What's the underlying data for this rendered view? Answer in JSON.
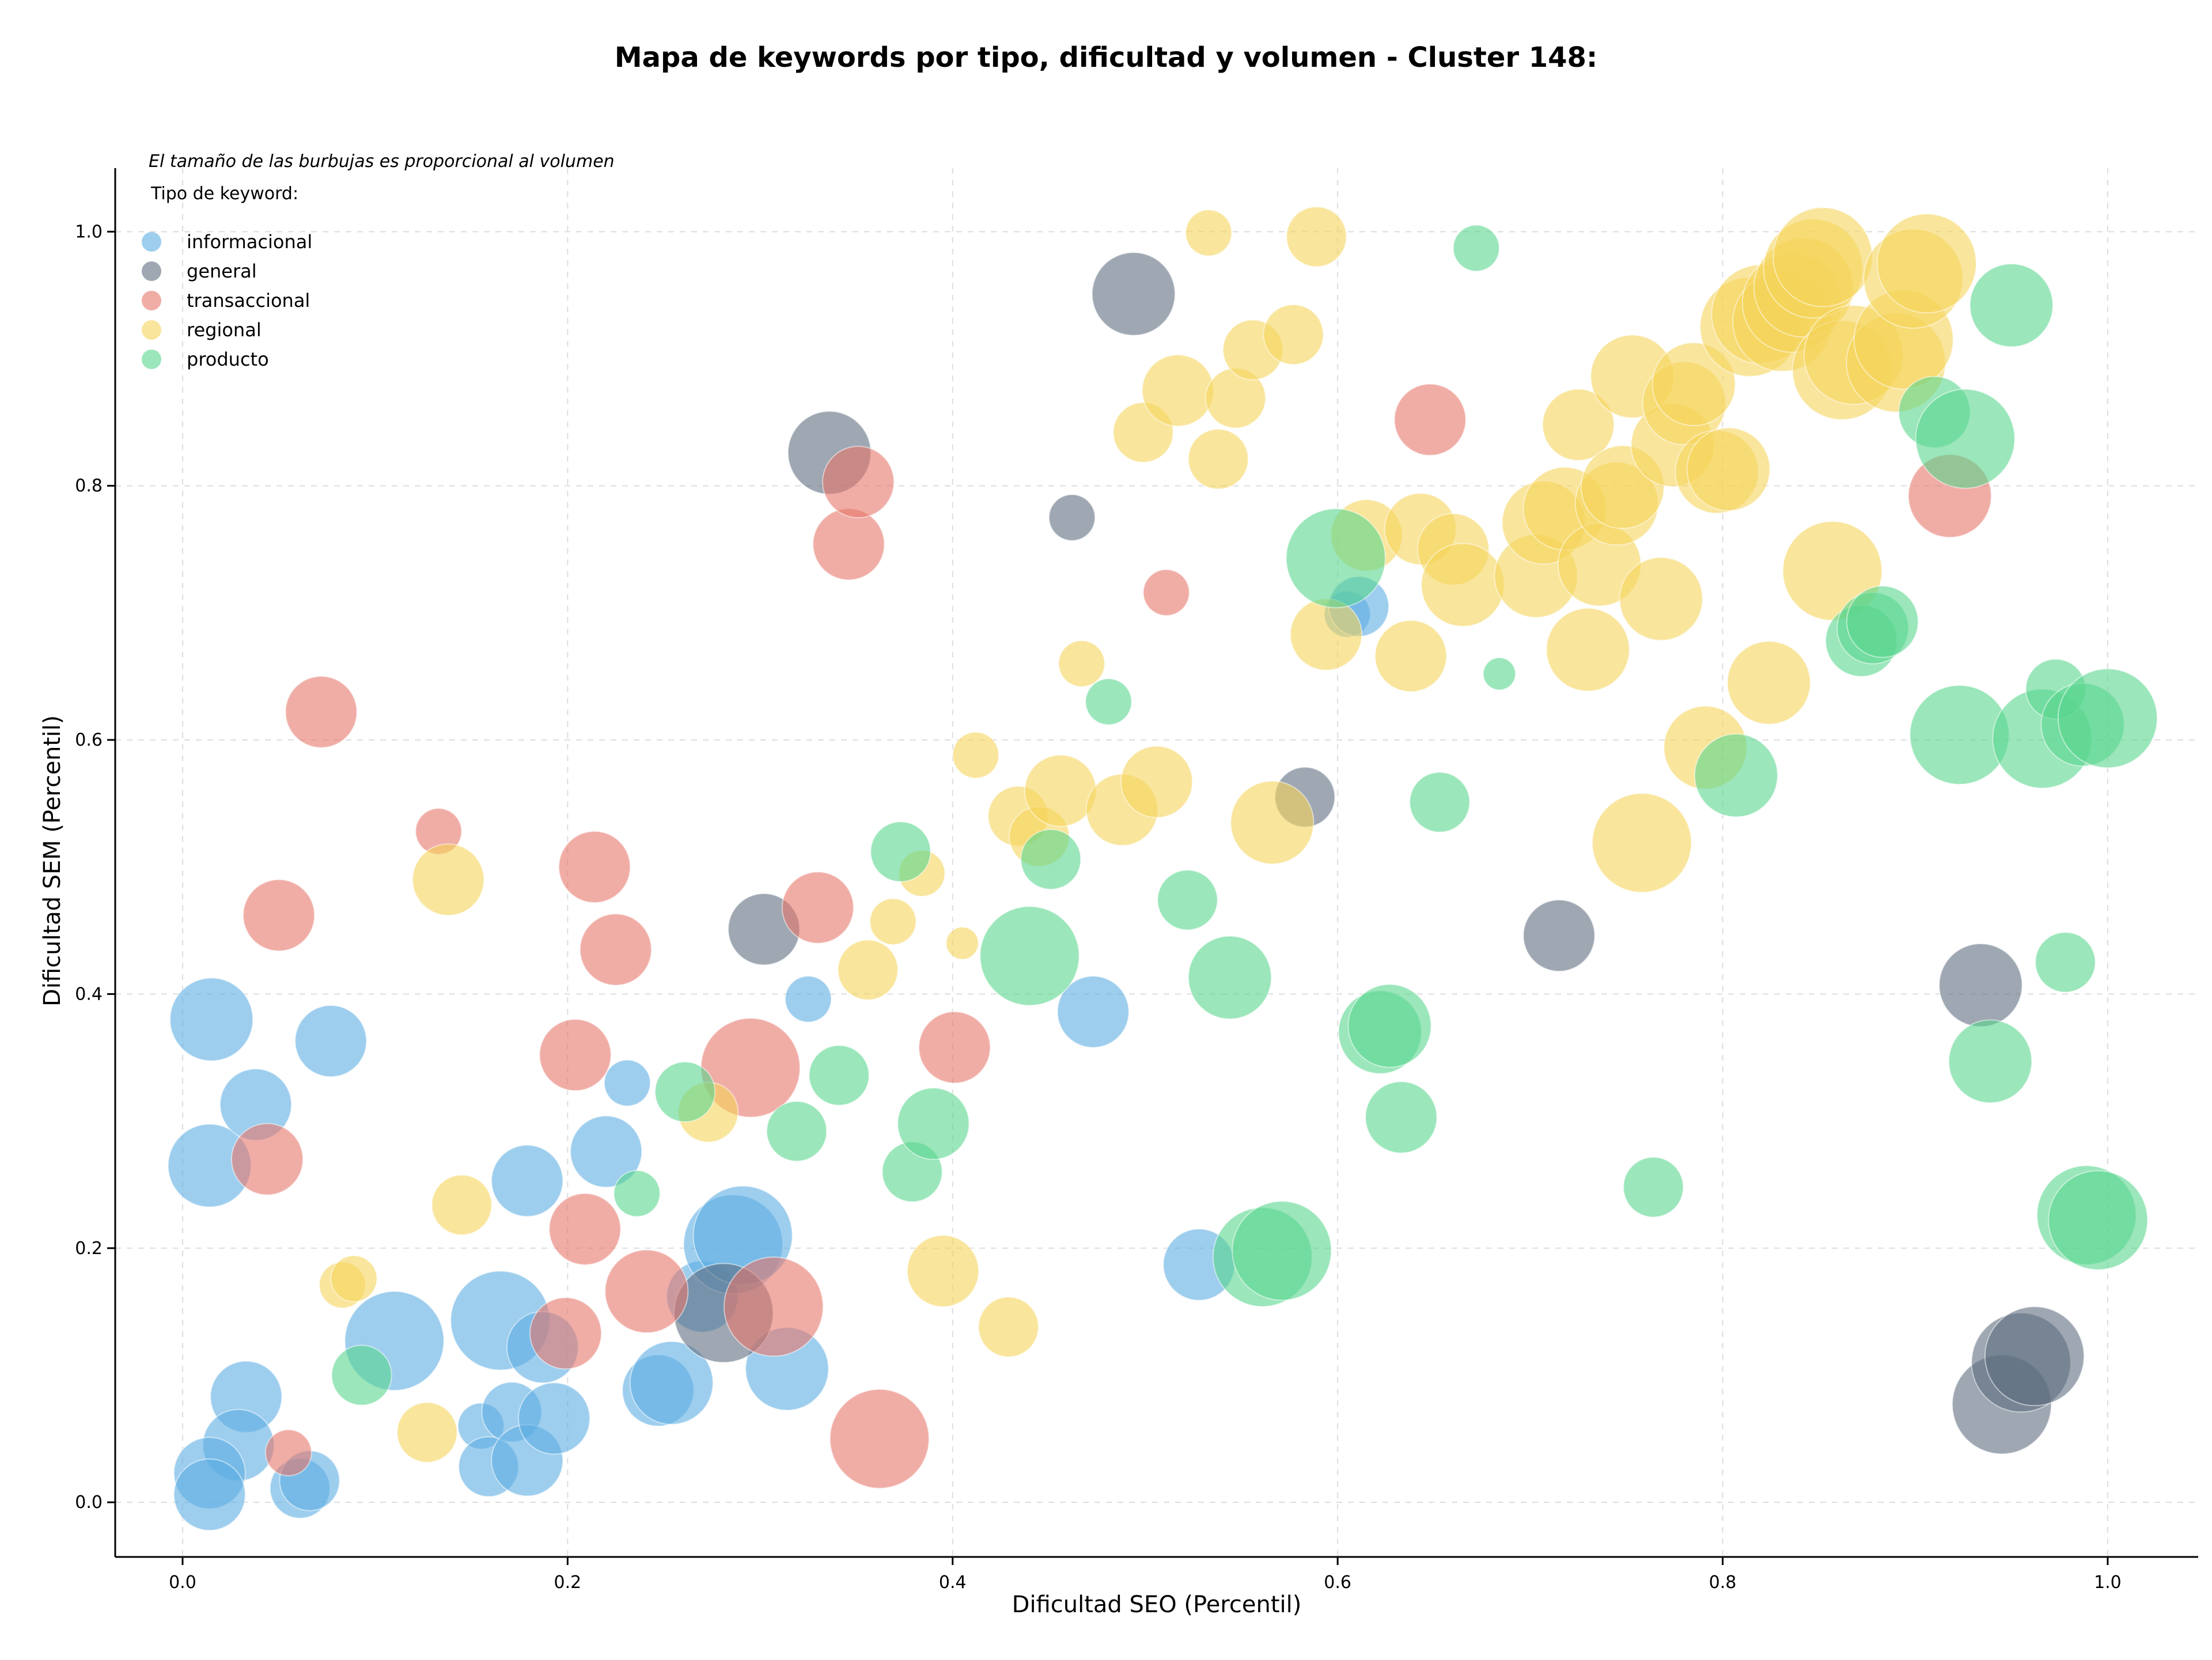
{
  "chart_data": {
    "type": "scatter",
    "title": "Mapa de keywords por tipo, dificultad y volumen - Cluster 148:",
    "xlabel": "Dificultad SEO (Percentil)",
    "ylabel": "Dificultad SEM (Percentil)",
    "xlim": [
      -0.035,
      1.047
    ],
    "ylim": [
      -0.043,
      1.05
    ],
    "xticks": [
      0.0,
      0.2,
      0.4,
      0.6,
      0.8,
      1.0
    ],
    "yticks": [
      0.0,
      0.2,
      0.4,
      0.6,
      0.8,
      1.0
    ],
    "grid": true,
    "note": "El tamaño de las burbujas es proporcional al volumen",
    "legend_title": "Tipo de keyword:",
    "legend_position": "top-left",
    "series": [
      {
        "name": "informacional",
        "color": "#5dade2",
        "points": [
          [
            0.015,
            0.38,
            5
          ],
          [
            0.014,
            0.265,
            5
          ],
          [
            0.038,
            0.313,
            4
          ],
          [
            0.077,
            0.363,
            4
          ],
          [
            0.033,
            0.083,
            4
          ],
          [
            0.029,
            0.045,
            4
          ],
          [
            0.014,
            0.023,
            4
          ],
          [
            0.014,
            0.006,
            4
          ],
          [
            0.061,
            0.011,
            3
          ],
          [
            0.066,
            0.017,
            3
          ],
          [
            0.155,
            0.06,
            2
          ],
          [
            0.159,
            0.028,
            3
          ],
          [
            0.171,
            0.071,
            3
          ],
          [
            0.179,
            0.033,
            4
          ],
          [
            0.193,
            0.066,
            4
          ],
          [
            0.11,
            0.127,
            6
          ],
          [
            0.165,
            0.143,
            6
          ],
          [
            0.187,
            0.122,
            4
          ],
          [
            0.179,
            0.253,
            4
          ],
          [
            0.22,
            0.276,
            4
          ],
          [
            0.231,
            0.33,
            2
          ],
          [
            0.247,
            0.088,
            4
          ],
          [
            0.254,
            0.094,
            5
          ],
          [
            0.27,
            0.162,
            4
          ],
          [
            0.286,
            0.203,
            6
          ],
          [
            0.291,
            0.21,
            6
          ],
          [
            0.314,
            0.105,
            5
          ],
          [
            0.325,
            0.396,
            2
          ],
          [
            0.473,
            0.386,
            4
          ],
          [
            0.528,
            0.187,
            4
          ],
          [
            0.605,
            0.699,
            2
          ],
          [
            0.611,
            0.705,
            3
          ]
        ]
      },
      {
        "name": "general",
        "color": "#5d6d7e",
        "points": [
          [
            0.336,
            0.826,
            5
          ],
          [
            0.494,
            0.951,
            5
          ],
          [
            0.302,
            0.451,
            4
          ],
          [
            0.281,
            0.149,
            6
          ],
          [
            0.462,
            0.775,
            2
          ],
          [
            0.583,
            0.555,
            3
          ],
          [
            0.715,
            0.446,
            4
          ],
          [
            0.934,
            0.407,
            5
          ],
          [
            0.945,
            0.077,
            6
          ],
          [
            0.955,
            0.11,
            6
          ],
          [
            0.962,
            0.115,
            6
          ]
        ]
      },
      {
        "name": "transaccional",
        "color": "#e6776b",
        "points": [
          [
            0.072,
            0.622,
            4
          ],
          [
            0.05,
            0.462,
            4
          ],
          [
            0.044,
            0.27,
            4
          ],
          [
            0.055,
            0.039,
            2
          ],
          [
            0.133,
            0.528,
            2
          ],
          [
            0.214,
            0.5,
            4
          ],
          [
            0.225,
            0.435,
            4
          ],
          [
            0.204,
            0.352,
            4
          ],
          [
            0.209,
            0.215,
            4
          ],
          [
            0.199,
            0.133,
            4
          ],
          [
            0.241,
            0.166,
            5
          ],
          [
            0.295,
            0.342,
            6
          ],
          [
            0.307,
            0.154,
            6
          ],
          [
            0.33,
            0.468,
            4
          ],
          [
            0.346,
            0.754,
            4
          ],
          [
            0.351,
            0.803,
            4
          ],
          [
            0.362,
            0.05,
            6
          ],
          [
            0.401,
            0.358,
            4
          ],
          [
            0.511,
            0.716,
            2
          ],
          [
            0.648,
            0.852,
            4
          ],
          [
            0.918,
            0.792,
            5
          ]
        ]
      },
      {
        "name": "regional",
        "color": "#f5d35a",
        "points": [
          [
            0.138,
            0.49,
            4
          ],
          [
            0.145,
            0.234,
            3
          ],
          [
            0.083,
            0.171,
            2
          ],
          [
            0.089,
            0.176,
            2
          ],
          [
            0.127,
            0.055,
            3
          ],
          [
            0.273,
            0.307,
            3
          ],
          [
            0.356,
            0.419,
            3
          ],
          [
            0.369,
            0.457,
            2
          ],
          [
            0.384,
            0.495,
            2
          ],
          [
            0.405,
            0.44,
            1
          ],
          [
            0.395,
            0.182,
            4
          ],
          [
            0.412,
            0.588,
            2
          ],
          [
            0.429,
            0.138,
            3
          ],
          [
            0.434,
            0.54,
            3
          ],
          [
            0.445,
            0.524,
            3
          ],
          [
            0.456,
            0.56,
            4
          ],
          [
            0.467,
            0.66,
            2
          ],
          [
            0.488,
            0.545,
            4
          ],
          [
            0.499,
            0.842,
            3
          ],
          [
            0.506,
            0.567,
            4
          ],
          [
            0.517,
            0.875,
            4
          ],
          [
            0.533,
            0.999,
            2
          ],
          [
            0.538,
            0.821,
            3
          ],
          [
            0.547,
            0.869,
            3
          ],
          [
            0.556,
            0.907,
            3
          ],
          [
            0.566,
            0.535,
            5
          ],
          [
            0.577,
            0.919,
            3
          ],
          [
            0.589,
            0.996,
            3
          ],
          [
            0.594,
            0.683,
            4
          ],
          [
            0.615,
            0.761,
            4
          ],
          [
            0.638,
            0.666,
            4
          ],
          [
            0.643,
            0.766,
            4
          ],
          [
            0.66,
            0.75,
            4
          ],
          [
            0.665,
            0.722,
            5
          ],
          [
            0.703,
            0.729,
            5
          ],
          [
            0.707,
            0.771,
            5
          ],
          [
            0.718,
            0.782,
            5
          ],
          [
            0.73,
            0.671,
            5
          ],
          [
            0.736,
            0.738,
            5
          ],
          [
            0.725,
            0.848,
            4
          ],
          [
            0.745,
            0.786,
            5
          ],
          [
            0.748,
            0.799,
            5
          ],
          [
            0.753,
            0.886,
            5
          ],
          [
            0.758,
            0.519,
            6
          ],
          [
            0.768,
            0.711,
            5
          ],
          [
            0.774,
            0.832,
            5
          ],
          [
            0.78,
            0.865,
            5
          ],
          [
            0.785,
            0.88,
            5
          ],
          [
            0.791,
            0.594,
            5
          ],
          [
            0.797,
            0.811,
            5
          ],
          [
            0.803,
            0.813,
            5
          ],
          [
            0.814,
            0.925,
            6
          ],
          [
            0.82,
            0.935,
            6
          ],
          [
            0.824,
            0.645,
            5
          ],
          [
            0.831,
            0.929,
            6
          ],
          [
            0.836,
            0.944,
            6
          ],
          [
            0.842,
            0.956,
            6
          ],
          [
            0.847,
            0.971,
            6
          ],
          [
            0.852,
            0.98,
            6
          ],
          [
            0.857,
            0.733,
            6
          ],
          [
            0.862,
            0.891,
            6
          ],
          [
            0.868,
            0.903,
            6
          ],
          [
            0.89,
            0.897,
            6
          ],
          [
            0.894,
            0.915,
            6
          ],
          [
            0.899,
            0.963,
            6
          ],
          [
            0.906,
            0.975,
            6
          ]
        ]
      },
      {
        "name": "producto",
        "color": "#58d68d",
        "points": [
          [
            0.093,
            0.1,
            3
          ],
          [
            0.236,
            0.243,
            2
          ],
          [
            0.261,
            0.323,
            3
          ],
          [
            0.341,
            0.336,
            3
          ],
          [
            0.319,
            0.292,
            3
          ],
          [
            0.373,
            0.512,
            3
          ],
          [
            0.379,
            0.26,
            3
          ],
          [
            0.39,
            0.298,
            4
          ],
          [
            0.44,
            0.43,
            6
          ],
          [
            0.451,
            0.506,
            3
          ],
          [
            0.481,
            0.63,
            2
          ],
          [
            0.522,
            0.474,
            3
          ],
          [
            0.544,
            0.413,
            5
          ],
          [
            0.561,
            0.193,
            6
          ],
          [
            0.571,
            0.198,
            6
          ],
          [
            0.599,
            0.743,
            6
          ],
          [
            0.622,
            0.37,
            5
          ],
          [
            0.627,
            0.375,
            5
          ],
          [
            0.633,
            0.303,
            4
          ],
          [
            0.653,
            0.551,
            3
          ],
          [
            0.672,
            0.987,
            2
          ],
          [
            0.684,
            0.652,
            1
          ],
          [
            0.764,
            0.248,
            3
          ],
          [
            0.807,
            0.572,
            5
          ],
          [
            0.872,
            0.678,
            4
          ],
          [
            0.878,
            0.688,
            4
          ],
          [
            0.883,
            0.693,
            4
          ],
          [
            0.91,
            0.858,
            4
          ],
          [
            0.923,
            0.604,
            6
          ],
          [
            0.926,
            0.837,
            6
          ],
          [
            0.939,
            0.347,
            5
          ],
          [
            0.95,
            0.942,
            5
          ],
          [
            0.966,
            0.601,
            6
          ],
          [
            0.973,
            0.64,
            3
          ],
          [
            0.978,
            0.425,
            3
          ],
          [
            0.987,
            0.612,
            5
          ],
          [
            0.989,
            0.226,
            6
          ],
          [
            0.995,
            0.222,
            6
          ],
          [
            1.0,
            0.617,
            6
          ]
        ]
      }
    ]
  }
}
